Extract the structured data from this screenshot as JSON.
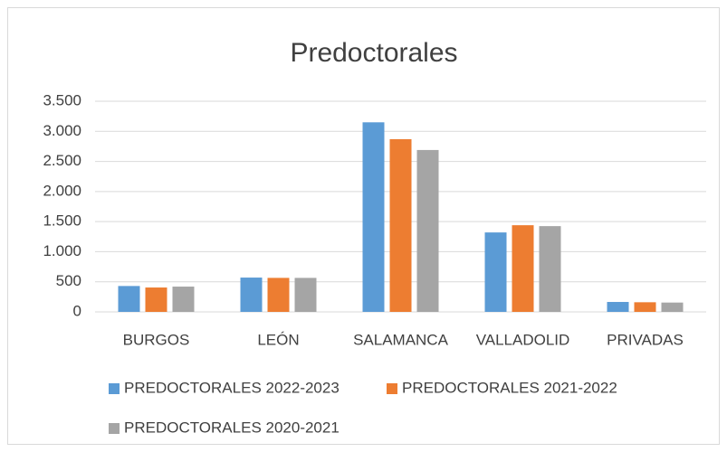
{
  "chart_data": {
    "type": "bar",
    "title": "Predoctorales",
    "categories": [
      "BURGOS",
      "LEÓN",
      "SALAMANCA",
      "VALLADOLID",
      "PRIVADAS"
    ],
    "series": [
      {
        "name": "PREDOCTORALES 2022-2023",
        "color": "#5b9bd5",
        "values": [
          430,
          570,
          3150,
          1320,
          165
        ]
      },
      {
        "name": "PREDOCTORALES 2021-2022",
        "color": "#ed7d31",
        "values": [
          405,
          565,
          2870,
          1440,
          160
        ]
      },
      {
        "name": "PREDOCTORALES 2020-2021",
        "color": "#a5a5a5",
        "values": [
          420,
          565,
          2690,
          1425,
          155
        ]
      }
    ],
    "ylim": [
      0,
      3500
    ],
    "yticks": [
      0,
      500,
      {
        "value": 1000,
        "label": "1.000"
      },
      {
        "value": 1500,
        "label": "1.500"
      },
      {
        "value": 2000,
        "label": "2.000"
      },
      {
        "value": 2500,
        "label": "2.500"
      },
      {
        "value": 3000,
        "label": "3.000"
      },
      {
        "value": 3500,
        "label": "3.500"
      }
    ],
    "grid": true
  }
}
